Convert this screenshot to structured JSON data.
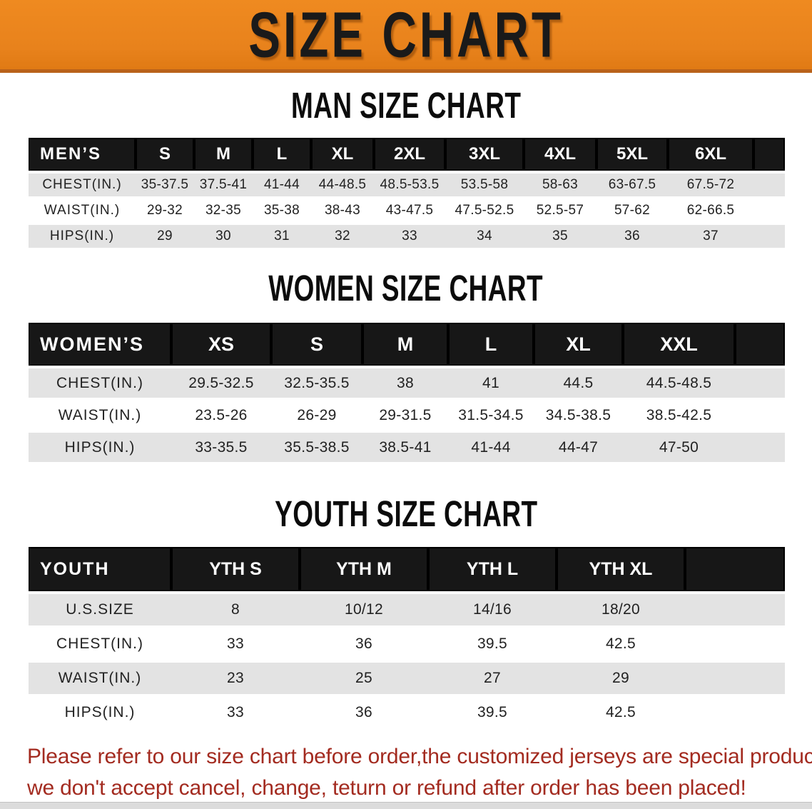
{
  "banner": {
    "title": "SIZE CHART"
  },
  "colors": {
    "banner_orange": "#E8821C",
    "table_header_black": "#171717",
    "row_stripe_gray": "#E3E3E3",
    "note_red": "#A32B20"
  },
  "sections": [
    {
      "heading": "MAN SIZE CHART",
      "table": {
        "header_label": "MEN’S",
        "columns": [
          "S",
          "M",
          "L",
          "XL",
          "2XL",
          "3XL",
          "4XL",
          "5XL",
          "6XL"
        ],
        "rows": [
          {
            "label": "CHEST(IN.)",
            "values": [
              "35-37.5",
              "37.5-41",
              "41-44",
              "44-48.5",
              "48.5-53.5",
              "53.5-58",
              "58-63",
              "63-67.5",
              "67.5-72"
            ]
          },
          {
            "label": "WAIST(IN.)",
            "values": [
              "29-32",
              "32-35",
              "35-38",
              "38-43",
              "43-47.5",
              "47.5-52.5",
              "52.5-57",
              "57-62",
              "62-66.5"
            ]
          },
          {
            "label": "HIPS(IN.)",
            "values": [
              "29",
              "30",
              "31",
              "32",
              "33",
              "34",
              "35",
              "36",
              "37"
            ]
          }
        ]
      }
    },
    {
      "heading": "WOMEN SIZE CHART",
      "table": {
        "header_label": "WOMEN’S",
        "columns": [
          "XS",
          "S",
          "M",
          "L",
          "XL",
          "XXL"
        ],
        "rows": [
          {
            "label": "CHEST(IN.)",
            "values": [
              "29.5-32.5",
              "32.5-35.5",
              "38",
              "41",
              "44.5",
              "44.5-48.5"
            ]
          },
          {
            "label": "WAIST(IN.)",
            "values": [
              "23.5-26",
              "26-29",
              "29-31.5",
              "31.5-34.5",
              "34.5-38.5",
              "38.5-42.5"
            ]
          },
          {
            "label": "HIPS(IN.)",
            "values": [
              "33-35.5",
              "35.5-38.5",
              "38.5-41",
              "41-44",
              "44-47",
              "47-50"
            ]
          }
        ]
      }
    },
    {
      "heading": "YOUTH SIZE CHART",
      "table": {
        "header_label": "YOUTH",
        "columns": [
          "YTH S",
          "YTH M",
          "YTH L",
          "YTH XL"
        ],
        "rows": [
          {
            "label": "U.S.SIZE",
            "values": [
              "8",
              "10/12",
              "14/16",
              "18/20"
            ]
          },
          {
            "label": "CHEST(IN.)",
            "values": [
              "33",
              "36",
              "39.5",
              "42.5"
            ]
          },
          {
            "label": "WAIST(IN.)",
            "values": [
              "23",
              "25",
              "27",
              "29"
            ]
          },
          {
            "label": "HIPS(IN.)",
            "values": [
              "33",
              "36",
              "39.5",
              "42.5"
            ]
          }
        ]
      }
    }
  ],
  "footer_note": {
    "line1": "Please refer to our size chart before order,the customized jerseys are special products,",
    "line2": "we don't accept cancel, change, teturn or refund after order has been placed!"
  }
}
